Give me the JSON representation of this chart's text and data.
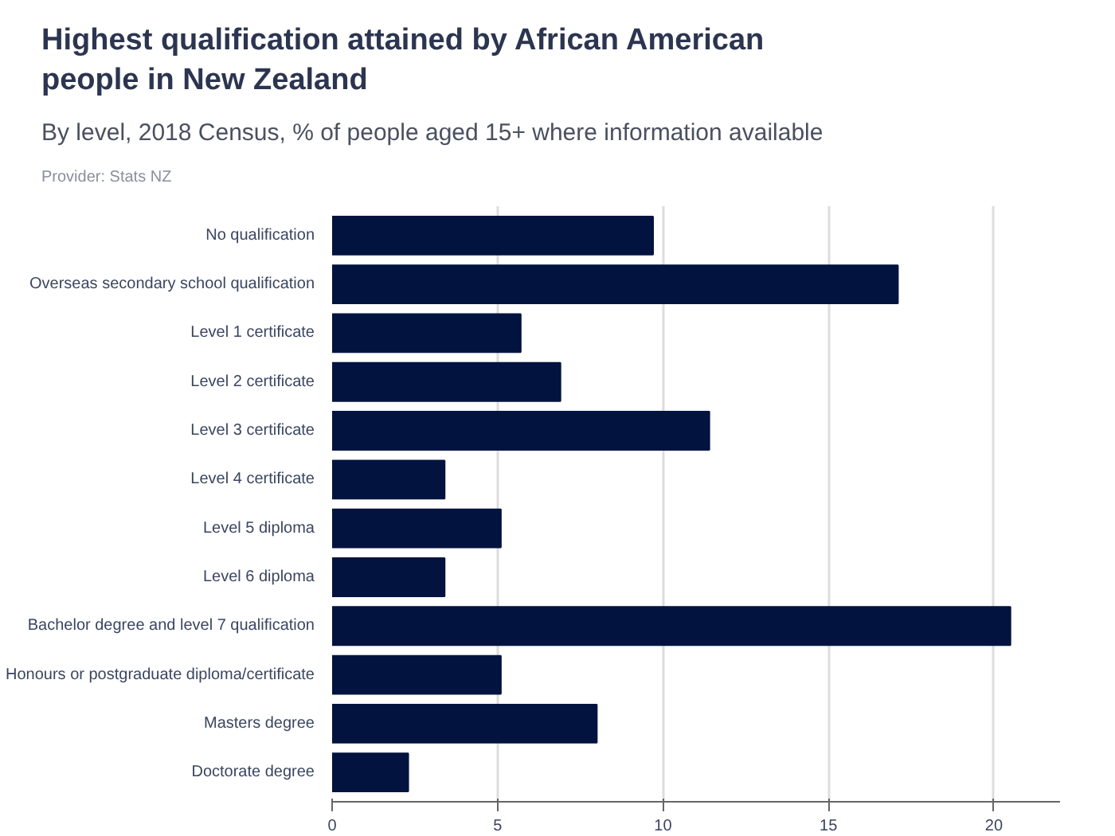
{
  "chart_data": {
    "type": "bar",
    "orientation": "horizontal",
    "title": "Highest qualification attained by African American people in New Zealand",
    "subtitle": "By level, 2018 Census, % of people aged 15+ where information available",
    "annotations": [
      "Provider: Stats NZ"
    ],
    "categories": [
      "No qualification",
      "Overseas secondary school qualification",
      "Level 1 certificate",
      "Level 2 certificate",
      "Level 3 certificate",
      "Level 4 certificate",
      "Level 5 diploma",
      "Level 6 diploma",
      "Bachelor degree and level 7 qualification",
      "Honours or postgraduate diploma/certificate",
      "Masters degree",
      "Doctorate degree"
    ],
    "values": [
      9.7,
      17.1,
      5.7,
      6.9,
      11.4,
      3.4,
      5.1,
      3.4,
      20.5,
      5.1,
      8.0,
      2.3
    ],
    "color": "#03133f",
    "xlim": [
      0,
      22
    ],
    "xticks": [
      0,
      5,
      10,
      15,
      20
    ],
    "grid": "x"
  }
}
